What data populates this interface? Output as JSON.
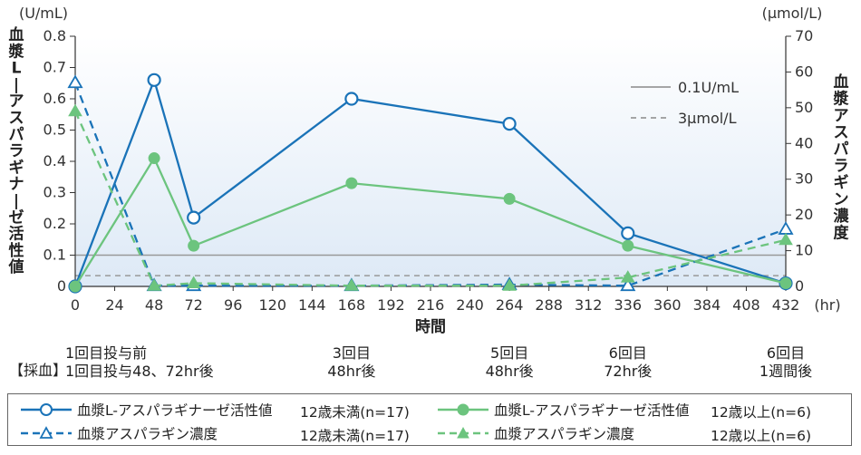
{
  "chart_data": {
    "type": "line",
    "x": [
      0,
      48,
      72,
      168,
      264,
      336,
      432
    ],
    "x_ticks": [
      "0",
      "24",
      "48",
      "72",
      "96",
      "120",
      "144",
      "168",
      "192",
      "216",
      "240",
      "264",
      "288",
      "312",
      "336",
      "360",
      "384",
      "408",
      "432"
    ],
    "x_unit": "(hr)",
    "xlabel": "時間",
    "xlim": [
      0,
      432
    ],
    "y_left": {
      "unit": "(U/mL)",
      "label": "血漿L-アスパラギナーゼ活性値",
      "lim": [
        0,
        0.8
      ],
      "ticks": [
        "0",
        "0.1",
        "0.2",
        "0.3",
        "0.4",
        "0.5",
        "0.6",
        "0.7",
        "0.8"
      ]
    },
    "y_right": {
      "unit": "(μmol/L)",
      "label": "血漿アスパラギン濃度",
      "lim": [
        0,
        70
      ],
      "ticks": [
        "0",
        "10",
        "20",
        "30",
        "40",
        "50",
        "60",
        "70"
      ]
    },
    "series": [
      {
        "name": "血漿L-アスパラギナーゼ活性値",
        "group": "12歳未満(n=17)",
        "axis": "left",
        "style": "solid",
        "marker": "circle-open",
        "color": "#1a73b8",
        "values": [
          0.0,
          0.66,
          0.22,
          0.6,
          0.52,
          0.17,
          0.01
        ]
      },
      {
        "name": "血漿L-アスパラギナーゼ活性値",
        "group": "12歳以上(n=6)",
        "axis": "left",
        "style": "solid",
        "marker": "circle-filled",
        "color": "#6cc47e",
        "values": [
          0.0,
          0.41,
          0.13,
          0.33,
          0.28,
          0.13,
          0.01
        ]
      },
      {
        "name": "血漿アスパラギン濃度",
        "group": "12歳未満(n=17)",
        "axis": "right",
        "style": "dashed",
        "marker": "triangle-open",
        "color": "#1a73b8",
        "values": [
          57,
          0.2,
          0.2,
          0.2,
          0.5,
          0.2,
          16
        ]
      },
      {
        "name": "血漿アスパラギン濃度",
        "group": "12歳以上(n=6)",
        "axis": "right",
        "style": "dashed",
        "marker": "triangle-filled",
        "color": "#6cc47e",
        "values": [
          49,
          0.2,
          0.9,
          0.2,
          0.2,
          2.5,
          13
        ]
      }
    ],
    "reference_lines": [
      {
        "label": "0.1U/mL",
        "axis": "left",
        "value": 0.1,
        "style": "solid",
        "color": "#999999"
      },
      {
        "label": "3μmol/L",
        "axis": "right",
        "value": 3,
        "style": "dashed",
        "color": "#999999"
      }
    ],
    "grid": false
  },
  "sampling": {
    "title": "【採血】",
    "labels": [
      {
        "x": 48,
        "lines": [
          "1回目投与前",
          "1回目投与48、72hr後"
        ]
      },
      {
        "x": 168,
        "lines": [
          "3回目",
          "48hr後"
        ]
      },
      {
        "x": 264,
        "lines": [
          "5回目",
          "48hr後"
        ]
      },
      {
        "x": 336,
        "lines": [
          "6回目",
          "72hr後"
        ]
      },
      {
        "x": 432,
        "lines": [
          "6回目",
          "1週間後"
        ]
      }
    ]
  },
  "legend": {
    "items": [
      {
        "label": "血漿L-アスパラギナーゼ活性値",
        "group": "12歳未満(n=17)"
      },
      {
        "label": "血漿アスパラギン濃度",
        "group": "12歳未満(n=17)"
      },
      {
        "label": "血漿L-アスパラギナーゼ活性値",
        "group": "12歳以上(n=6)"
      },
      {
        "label": "血漿アスパラギン濃度",
        "group": "12歳以上(n=6)"
      }
    ]
  }
}
